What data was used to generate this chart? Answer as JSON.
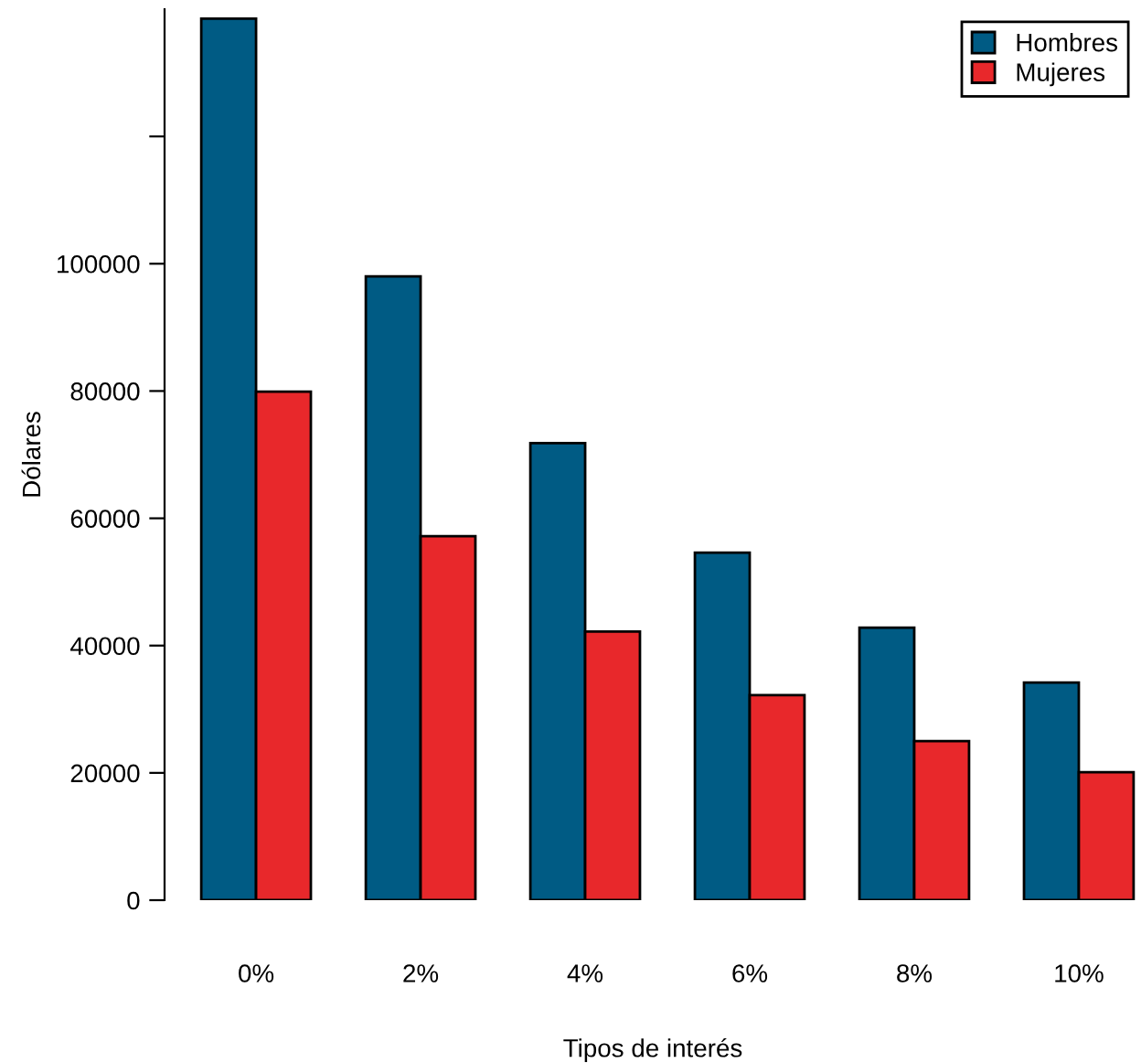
{
  "chart_data": {
    "type": "bar",
    "xlabel": "Tipos de interés",
    "ylabel": "Dólares",
    "categories": [
      "0%",
      "2%",
      "4%",
      "6%",
      "8%",
      "10%"
    ],
    "series": [
      {
        "name": "Hombres",
        "color": "#005b84",
        "values": [
          138500,
          98000,
          71800,
          54600,
          42800,
          34200
        ]
      },
      {
        "name": "Mujeres",
        "color": "#e8282b",
        "values": [
          79900,
          57200,
          42200,
          32200,
          25000,
          20100
        ]
      }
    ],
    "ylim": [
      0,
      140000
    ],
    "yticks": [
      0,
      20000,
      40000,
      60000,
      80000,
      100000,
      {
        "value": 120000,
        "label": null
      }
    ],
    "grid": false,
    "legend": "top right"
  }
}
